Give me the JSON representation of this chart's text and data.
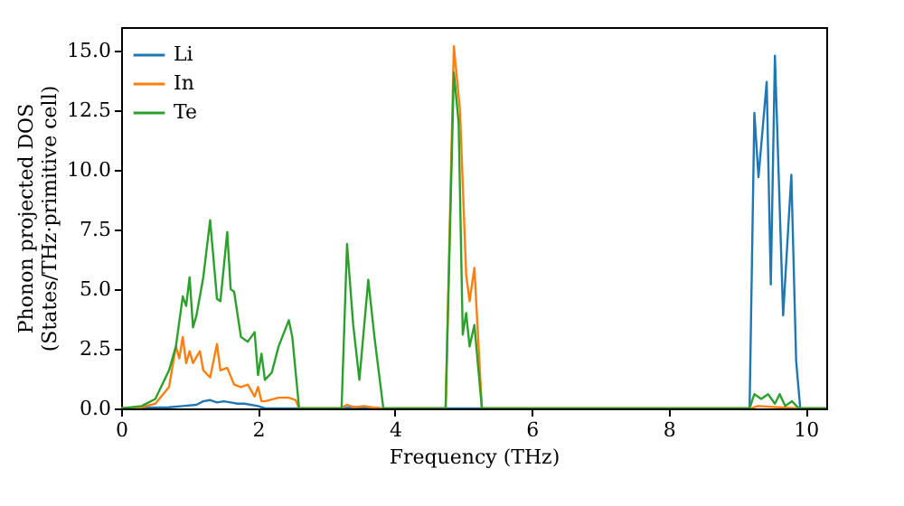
{
  "chart_data": {
    "type": "line",
    "xlabel": "Frequency (THz)",
    "ylabel": "Phonon projected DOS\n(States/THz·primitive cell)",
    "xlim": [
      0,
      10.3
    ],
    "ylim": [
      0,
      16
    ],
    "xticks": [
      0,
      2,
      4,
      6,
      8,
      10
    ],
    "yticks": [
      {
        "value": 0,
        "label": "0.0"
      },
      2.5,
      {
        "value": 5,
        "label": "5.0"
      },
      7.5,
      {
        "value": 10,
        "label": "10.0"
      },
      12.5,
      {
        "value": 15,
        "label": "15.0"
      }
    ],
    "legend": "top left",
    "grid": false,
    "line_style": "solid",
    "marker": "none",
    "series": [
      {
        "name": "Li",
        "color": "#1f77b4",
        "x": [
          0,
          0.7,
          0.9,
          1.1,
          1.2,
          1.3,
          1.4,
          1.5,
          1.6,
          1.7,
          1.8,
          2.0,
          2.1,
          2.6,
          3.2,
          3.4,
          3.6,
          3.8,
          4.7,
          5.3,
          9.18,
          9.25,
          9.31,
          9.43,
          9.49,
          9.55,
          9.67,
          9.79,
          9.86,
          9.92,
          10.3
        ],
        "values": [
          0,
          0.05,
          0.1,
          0.15,
          0.3,
          0.35,
          0.25,
          0.3,
          0.25,
          0.2,
          0.2,
          0.1,
          0,
          0,
          0,
          0.05,
          0.05,
          0,
          0,
          0,
          0,
          12.4,
          9.7,
          13.7,
          5.2,
          14.8,
          3.9,
          9.8,
          2.0,
          0,
          0
        ]
      },
      {
        "name": "In",
        "color": "#ff7f0e",
        "x": [
          0,
          0.3,
          0.5,
          0.7,
          0.8,
          0.85,
          0.9,
          0.95,
          1.0,
          1.05,
          1.15,
          1.2,
          1.3,
          1.4,
          1.45,
          1.55,
          1.65,
          1.75,
          1.85,
          1.95,
          2.0,
          2.05,
          2.1,
          2.3,
          2.45,
          2.55,
          2.6,
          3.2,
          3.3,
          3.4,
          3.55,
          3.65,
          3.8,
          4.74,
          4.86,
          4.95,
          5.04,
          5.09,
          5.16,
          5.27,
          9.2,
          9.3,
          9.9,
          10.3
        ],
        "values": [
          0,
          0.05,
          0.2,
          0.9,
          2.6,
          2.1,
          3.0,
          1.9,
          2.4,
          1.9,
          2.4,
          1.6,
          1.3,
          2.7,
          1.6,
          1.7,
          1.0,
          0.9,
          1.0,
          0.5,
          0.9,
          0.3,
          0.3,
          0.45,
          0.45,
          0.35,
          0,
          0,
          0.15,
          0.05,
          0.1,
          0.05,
          0,
          0,
          15.2,
          12.5,
          5.6,
          4.5,
          5.9,
          0,
          0,
          0.1,
          0,
          0
        ]
      },
      {
        "name": "Te",
        "color": "#2ca02c",
        "x": [
          0,
          0.3,
          0.5,
          0.7,
          0.8,
          0.9,
          0.95,
          1.0,
          1.05,
          1.1,
          1.2,
          1.3,
          1.4,
          1.45,
          1.55,
          1.6,
          1.65,
          1.75,
          1.85,
          1.95,
          2.0,
          2.05,
          2.1,
          2.2,
          2.3,
          2.45,
          2.5,
          2.6,
          3.22,
          3.3,
          3.39,
          3.48,
          3.61,
          3.7,
          3.83,
          4.74,
          4.86,
          4.93,
          4.99,
          5.04,
          5.09,
          5.16,
          5.27,
          9.18,
          9.25,
          9.35,
          9.45,
          9.55,
          9.62,
          9.7,
          9.8,
          9.9,
          10.3
        ],
        "values": [
          0,
          0.1,
          0.4,
          1.6,
          2.6,
          4.7,
          4.3,
          5.5,
          3.4,
          3.9,
          5.5,
          7.9,
          4.6,
          4.5,
          7.4,
          5.0,
          4.9,
          3.0,
          2.8,
          3.2,
          1.4,
          2.3,
          1.2,
          1.5,
          2.6,
          3.7,
          3.0,
          0,
          0,
          6.9,
          3.5,
          1.2,
          5.4,
          3.0,
          0,
          0,
          14.1,
          12.0,
          3.1,
          4.0,
          2.6,
          3.5,
          0,
          0,
          0.6,
          0.4,
          0.6,
          0.2,
          0.6,
          0.1,
          0.3,
          0,
          0
        ]
      }
    ]
  }
}
